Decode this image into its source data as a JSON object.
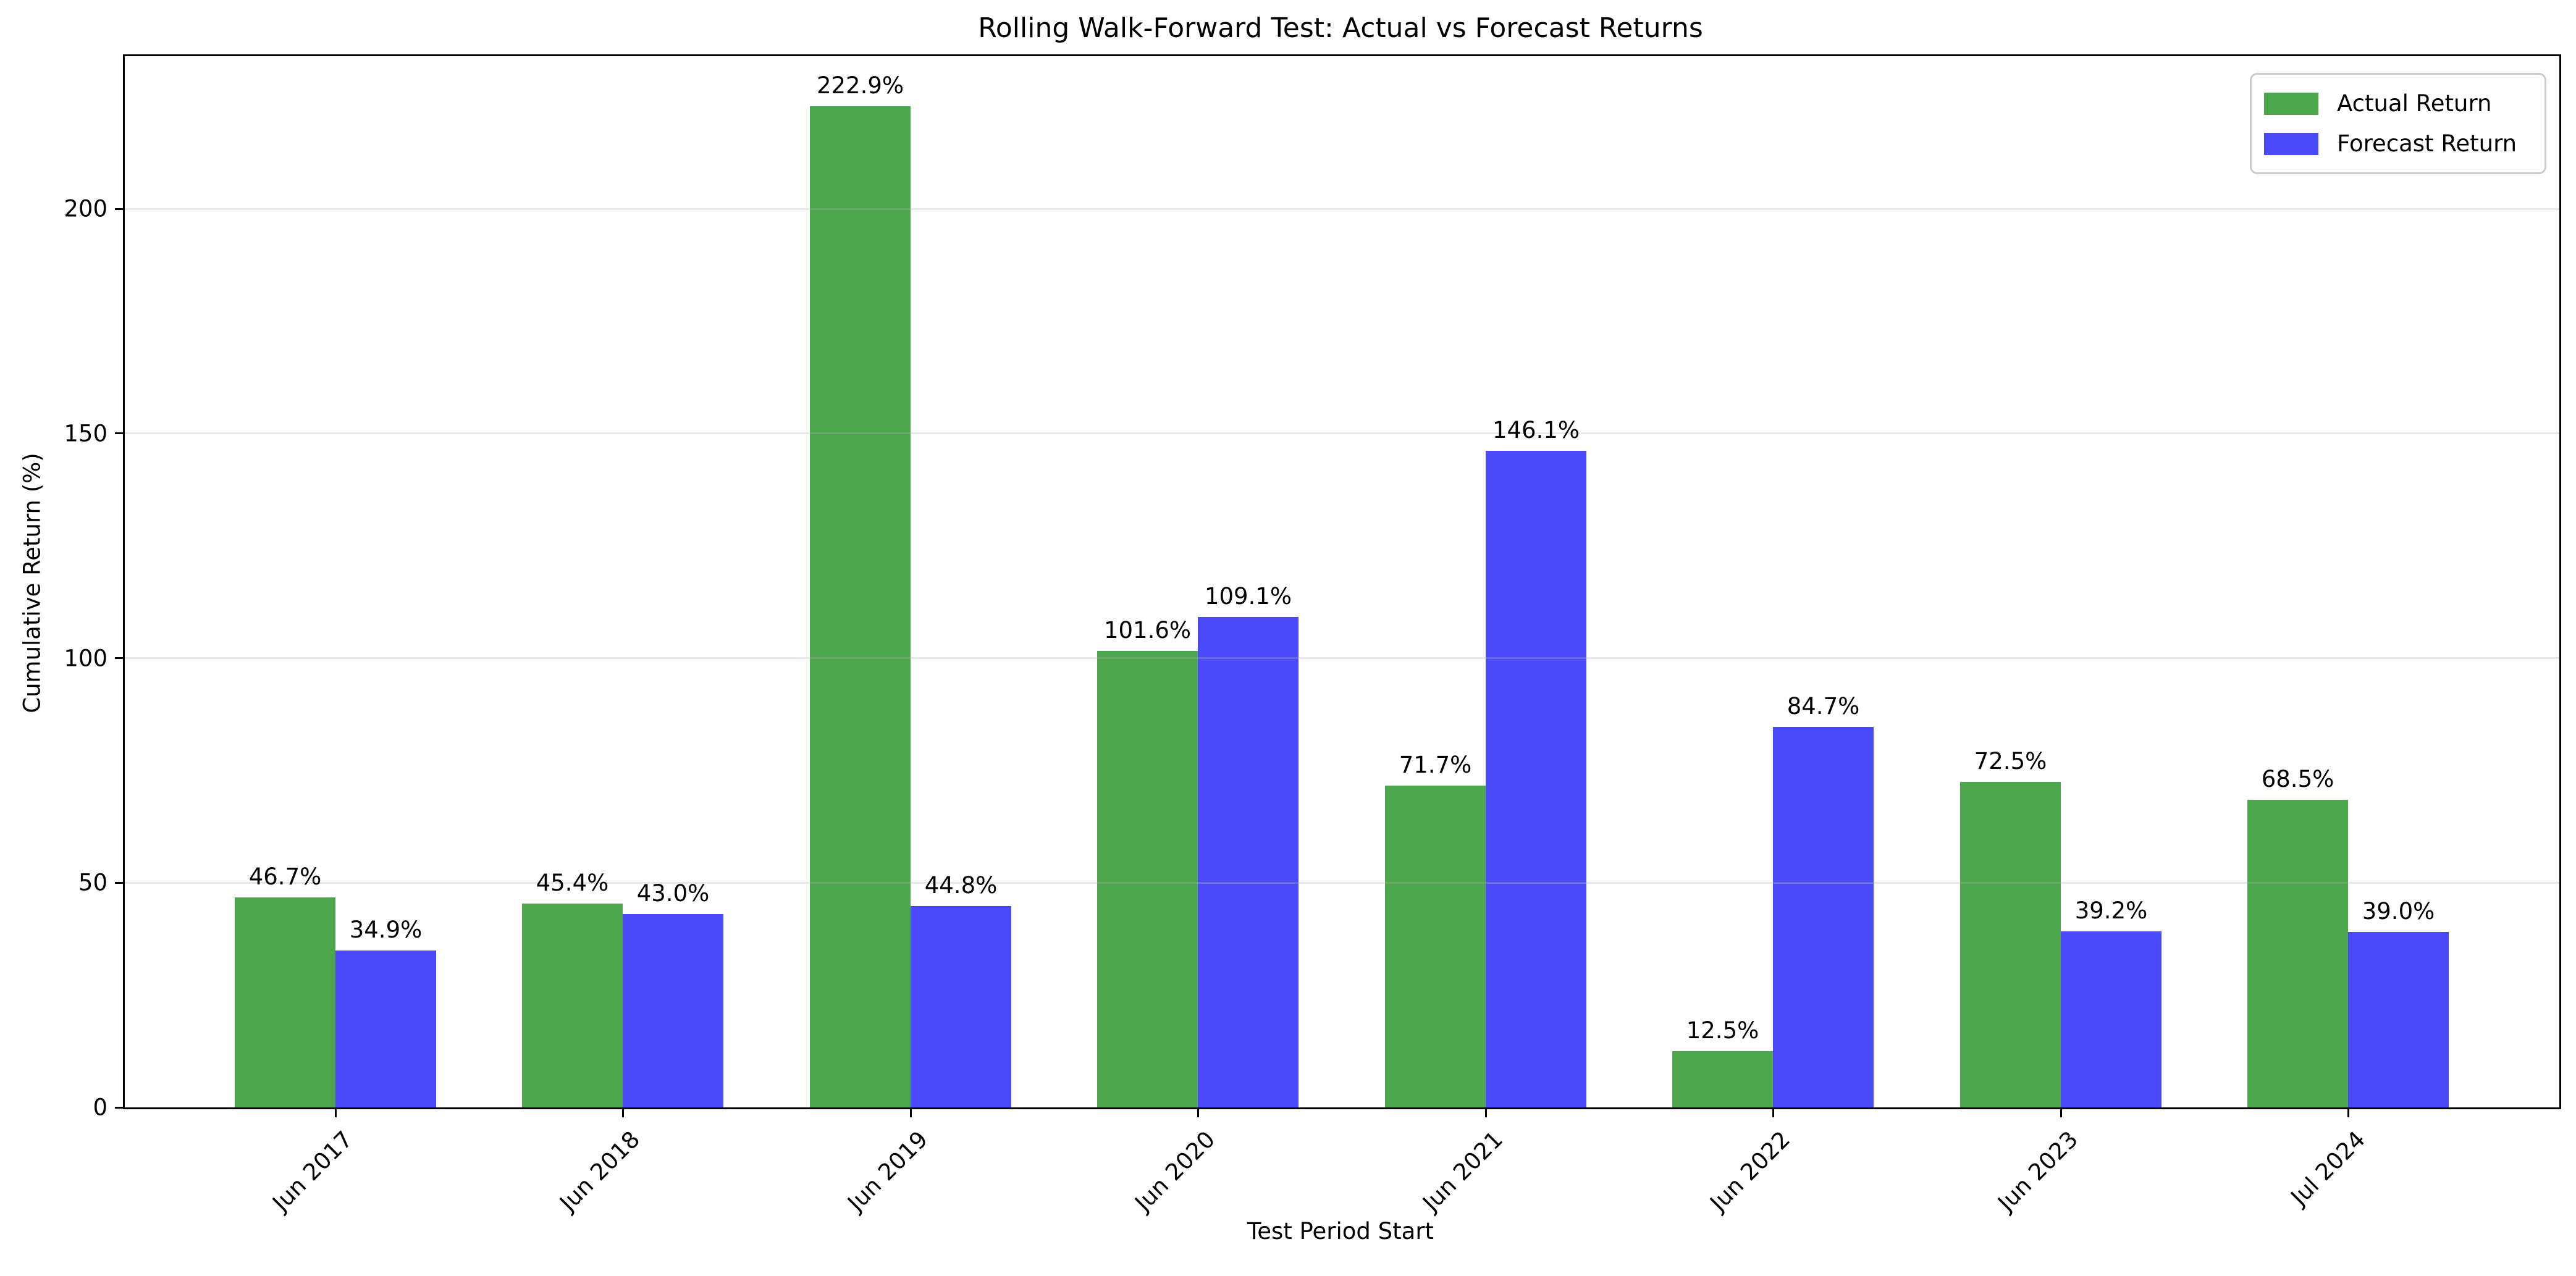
{
  "chart_data": {
    "type": "bar",
    "title": "Rolling Walk-Forward Test: Actual vs Forecast Returns",
    "xlabel": "Test Period Start",
    "ylabel": "Cumulative Return (%)",
    "categories": [
      "Jun 2017",
      "Jun 2018",
      "Jun 2019",
      "Jun 2020",
      "Jun 2021",
      "Jun 2022",
      "Jun 2023",
      "Jul 2024"
    ],
    "series": [
      {
        "name": "Actual Return",
        "color": "#4CA64C",
        "values": [
          46.7,
          45.4,
          222.9,
          101.6,
          71.7,
          12.5,
          72.5,
          68.5
        ]
      },
      {
        "name": "Forecast Return",
        "color": "#4A4AFA",
        "values": [
          34.9,
          43.0,
          44.8,
          109.1,
          146.1,
          84.7,
          39.2,
          39.0
        ]
      }
    ],
    "value_label_suffix": "%",
    "yticks": [
      0,
      50,
      100,
      150,
      200
    ],
    "ylim": [
      0,
      234
    ],
    "grid": true,
    "legend_position": "upper right"
  }
}
